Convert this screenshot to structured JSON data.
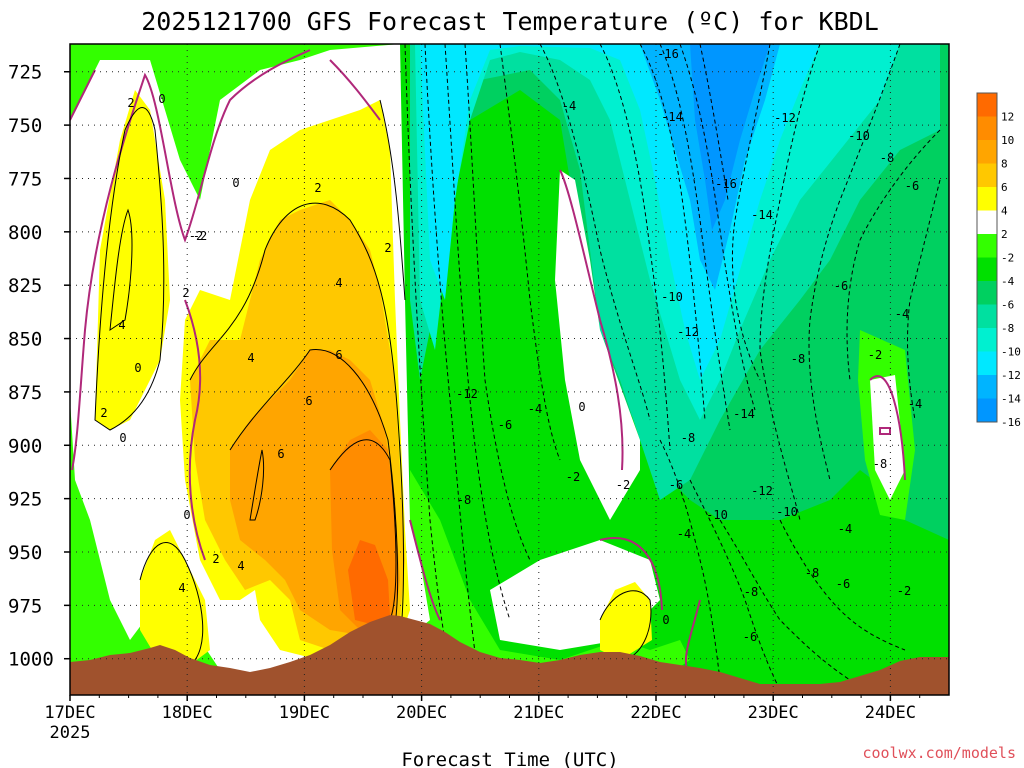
{
  "chart_data": {
    "type": "time-height contour (filled)",
    "title": "2025121700 GFS Forecast Temperature (ºC) for KBDL",
    "xlabel": "Forecast Time (UTC)",
    "ylabel": "",
    "x_tick_labels": [
      "17DEC",
      "18DEC",
      "19DEC",
      "20DEC",
      "21DEC",
      "22DEC",
      "23DEC",
      "24DEC"
    ],
    "x_year_label": "2025",
    "x_range_days": [
      0,
      7.5
    ],
    "y_tick_labels": [
      "725",
      "750",
      "775",
      "800",
      "825",
      "850",
      "875",
      "900",
      "925",
      "950",
      "975",
      "1000"
    ],
    "y_range_hpa": [
      712,
      1017
    ],
    "legend_levels": [
      "12",
      "10",
      "8",
      "6",
      "4",
      "2",
      "-2",
      "-4",
      "-6",
      "-8",
      "-10",
      "-12",
      "-14",
      "-16"
    ],
    "legend_colors": [
      "#ff6a00",
      "#ff8c00",
      "#ffa500",
      "#ffc800",
      "#ffff00",
      "#ffffff",
      "#33ff00",
      "#00e000",
      "#00d060",
      "#00e0a0",
      "#00f0d0",
      "#00e8ff",
      "#00b4ff",
      "#0096ff"
    ],
    "contour_labels": [
      "2",
      "0",
      "0",
      "-2",
      "2",
      "4",
      "0",
      "2",
      "0",
      "2",
      "4",
      "6",
      "6",
      "4",
      "6",
      "0",
      "2",
      "4",
      "4",
      "2",
      "-2",
      "-4",
      "-16",
      "-14",
      "-12",
      "-10",
      "-8",
      "-16",
      "-14",
      "-10",
      "-12",
      "-8",
      "-6",
      "-4",
      "-12",
      "-6",
      "-4",
      "0",
      "-8",
      "-2",
      "-2",
      "-6",
      "-4",
      "-10",
      "-10",
      "-8",
      "-6",
      "-4",
      "-2",
      "-8",
      "-14",
      "-12",
      "-2",
      "-6",
      "-8",
      "0",
      "-8",
      "-6",
      "-4"
    ]
  },
  "footer": {
    "credit": "coolwx.com/models"
  },
  "colors": {
    "frame": "#000000",
    "terrain": "#a0522d",
    "zero_line": "#b0287a",
    "credit": "#e0505a"
  }
}
